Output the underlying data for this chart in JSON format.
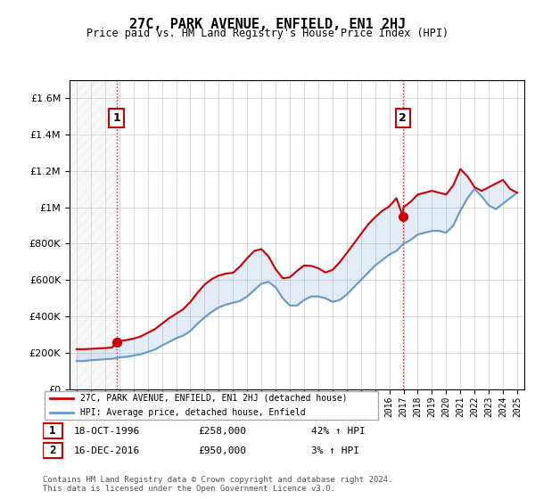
{
  "title": "27C, PARK AVENUE, ENFIELD, EN1 2HJ",
  "subtitle": "Price paid vs. HM Land Registry's House Price Index (HPI)",
  "legend_line1": "27C, PARK AVENUE, ENFIELD, EN1 2HJ (detached house)",
  "legend_line2": "HPI: Average price, detached house, Enfield",
  "sale1_label": "1",
  "sale1_date": "18-OCT-1996",
  "sale1_price": "£258,000",
  "sale1_hpi": "42% ↑ HPI",
  "sale1_year": 1996.8,
  "sale1_value": 258000,
  "sale2_label": "2",
  "sale2_date": "16-DEC-2016",
  "sale2_price": "£950,000",
  "sale2_hpi": "3% ↑ HPI",
  "sale2_year": 2016.95,
  "sale2_value": 950000,
  "footer": "Contains HM Land Registry data © Crown copyright and database right 2024.\nThis data is licensed under the Open Government Licence v3.0.",
  "red_color": "#cc0000",
  "blue_color": "#6699cc",
  "ylim": [
    0,
    1700000
  ],
  "xlim_start": 1993.5,
  "xlim_end": 2025.5,
  "yticks": [
    0,
    200000,
    400000,
    600000,
    800000,
    1000000,
    1200000,
    1400000,
    1600000
  ],
  "ytick_labels": [
    "£0",
    "£200K",
    "£400K",
    "£600K",
    "£800K",
    "£1M",
    "£1.2M",
    "£1.4M",
    "£1.6M"
  ],
  "hpi_years": [
    1994,
    1994.5,
    1995,
    1995.5,
    1996,
    1996.5,
    1997,
    1997.5,
    1998,
    1998.5,
    1999,
    1999.5,
    2000,
    2000.5,
    2001,
    2001.5,
    2002,
    2002.5,
    2003,
    2003.5,
    2004,
    2004.5,
    2005,
    2005.5,
    2006,
    2006.5,
    2007,
    2007.5,
    2008,
    2008.5,
    2009,
    2009.5,
    2010,
    2010.5,
    2011,
    2011.5,
    2012,
    2012.5,
    2013,
    2013.5,
    2014,
    2014.5,
    2015,
    2015.5,
    2016,
    2016.5,
    2017,
    2017.5,
    2018,
    2018.5,
    2019,
    2019.5,
    2020,
    2020.5,
    2021,
    2021.5,
    2022,
    2022.5,
    2023,
    2023.5,
    2024,
    2024.5,
    2025
  ],
  "hpi_values": [
    155000,
    155000,
    160000,
    162000,
    165000,
    167000,
    175000,
    178000,
    185000,
    192000,
    205000,
    218000,
    240000,
    260000,
    280000,
    295000,
    320000,
    360000,
    395000,
    425000,
    450000,
    465000,
    475000,
    485000,
    510000,
    545000,
    580000,
    590000,
    560000,
    500000,
    460000,
    460000,
    490000,
    510000,
    510000,
    500000,
    480000,
    490000,
    520000,
    560000,
    600000,
    640000,
    680000,
    710000,
    740000,
    760000,
    800000,
    820000,
    850000,
    860000,
    870000,
    870000,
    860000,
    900000,
    980000,
    1050000,
    1100000,
    1060000,
    1010000,
    990000,
    1020000,
    1050000,
    1080000
  ],
  "red_years": [
    1994,
    1994.5,
    1995,
    1995.5,
    1996,
    1996.5,
    1996.8,
    1997,
    1997.5,
    1998,
    1998.5,
    1999,
    1999.5,
    2000,
    2000.5,
    2001,
    2001.5,
    2002,
    2002.5,
    2003,
    2003.5,
    2004,
    2004.5,
    2005,
    2005.5,
    2006,
    2006.5,
    2007,
    2007.5,
    2008,
    2008.5,
    2009,
    2009.5,
    2010,
    2010.5,
    2011,
    2011.5,
    2012,
    2012.5,
    2013,
    2013.5,
    2014,
    2014.5,
    2015,
    2015.5,
    2016,
    2016.5,
    2016.95,
    2017,
    2017.5,
    2018,
    2018.5,
    2019,
    2019.5,
    2020,
    2020.5,
    2021,
    2021.5,
    2022,
    2022.5,
    2023,
    2023.5,
    2024,
    2024.5,
    2025
  ],
  "red_values": [
    220000,
    220000,
    222000,
    224000,
    226000,
    230000,
    258000,
    265000,
    270000,
    278000,
    290000,
    310000,
    330000,
    360000,
    390000,
    415000,
    440000,
    480000,
    530000,
    575000,
    605000,
    625000,
    635000,
    640000,
    675000,
    720000,
    760000,
    770000,
    730000,
    660000,
    610000,
    615000,
    650000,
    680000,
    678000,
    665000,
    642000,
    655000,
    697000,
    748000,
    800000,
    852000,
    905000,
    945000,
    980000,
    1005000,
    1050000,
    950000,
    1000000,
    1030000,
    1070000,
    1080000,
    1090000,
    1080000,
    1070000,
    1120000,
    1210000,
    1170000,
    1110000,
    1090000,
    1110000,
    1130000,
    1150000,
    1100000,
    1080000
  ]
}
